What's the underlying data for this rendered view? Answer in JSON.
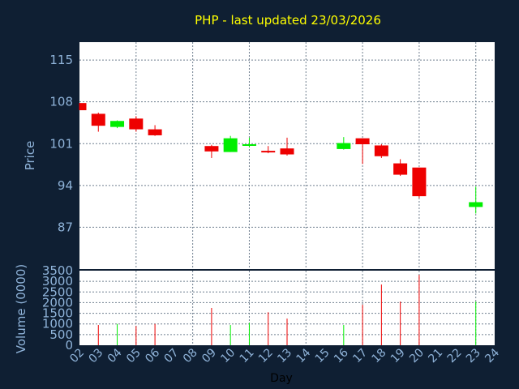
{
  "chart_data": {
    "type": "candlestick",
    "title": "PHP - last updated 23/03/2026",
    "colors": {
      "background": "#0f1f33",
      "panel": "#ffffff",
      "grid": "#6f7f8f",
      "up": "#00ee00",
      "down": "#ee0000",
      "text": "#8fb3d9",
      "title": "#ffff00"
    },
    "price": {
      "ylabel": "Price",
      "ylim": [
        80,
        118
      ],
      "ticks": [
        "115",
        "108",
        "101",
        "94",
        "87"
      ],
      "tick_values": [
        115,
        108,
        101,
        94,
        87
      ]
    },
    "volume": {
      "ylabel": "Volume (0000)",
      "ylim": [
        0,
        3500
      ],
      "ticks": [
        "3500",
        "3000",
        "2500",
        "2000",
        "1500",
        "1000",
        "500",
        "0"
      ],
      "tick_values": [
        3500,
        3000,
        2500,
        2000,
        1500,
        1000,
        500,
        0
      ]
    },
    "xlabel": "Day",
    "x_ticks": [
      "02",
      "03",
      "04",
      "05",
      "06",
      "07",
      "08",
      "09",
      "10",
      "11",
      "12",
      "13",
      "14",
      "15",
      "16",
      "17",
      "18",
      "19",
      "20",
      "21",
      "22",
      "23",
      "24"
    ],
    "candles": [
      {
        "day": "02",
        "open": 107.8,
        "high": 107.8,
        "low": 106.6,
        "close": 106.6,
        "volume": 0
      },
      {
        "day": "03",
        "open": 106.0,
        "high": 106.2,
        "low": 103.0,
        "close": 104.0,
        "volume": 950
      },
      {
        "day": "04",
        "open": 103.8,
        "high": 104.9,
        "low": 103.6,
        "close": 104.8,
        "volume": 1000
      },
      {
        "day": "05",
        "open": 105.2,
        "high": 105.6,
        "low": 103.0,
        "close": 103.4,
        "volume": 900
      },
      {
        "day": "06",
        "open": 103.4,
        "high": 104.1,
        "low": 102.3,
        "close": 102.4,
        "volume": 1000
      },
      {
        "day": "09",
        "open": 100.6,
        "high": 100.8,
        "low": 98.6,
        "close": 99.7,
        "volume": 1750
      },
      {
        "day": "10",
        "open": 99.6,
        "high": 102.3,
        "low": 99.6,
        "close": 101.9,
        "volume": 950
      },
      {
        "day": "11",
        "open": 100.7,
        "high": 102.0,
        "low": 100.4,
        "close": 100.9,
        "volume": 1050
      },
      {
        "day": "12",
        "open": 99.8,
        "high": 100.6,
        "low": 99.4,
        "close": 99.6,
        "volume": 1550
      },
      {
        "day": "13",
        "open": 100.2,
        "high": 102.0,
        "low": 99.0,
        "close": 99.2,
        "volume": 1250
      },
      {
        "day": "16",
        "open": 100.1,
        "high": 102.1,
        "low": 100.0,
        "close": 101.1,
        "volume": 950
      },
      {
        "day": "17",
        "open": 101.9,
        "high": 101.9,
        "low": 97.6,
        "close": 100.9,
        "volume": 1900
      },
      {
        "day": "18",
        "open": 100.7,
        "high": 100.9,
        "low": 98.6,
        "close": 98.9,
        "volume": 2850
      },
      {
        "day": "19",
        "open": 97.7,
        "high": 98.4,
        "low": 95.6,
        "close": 95.8,
        "volume": 2050
      },
      {
        "day": "20",
        "open": 97.0,
        "high": 97.0,
        "low": 91.9,
        "close": 92.2,
        "volume": 3300
      },
      {
        "day": "23",
        "open": 90.4,
        "high": 93.8,
        "low": 89.3,
        "close": 91.2,
        "volume": 2050
      }
    ]
  }
}
